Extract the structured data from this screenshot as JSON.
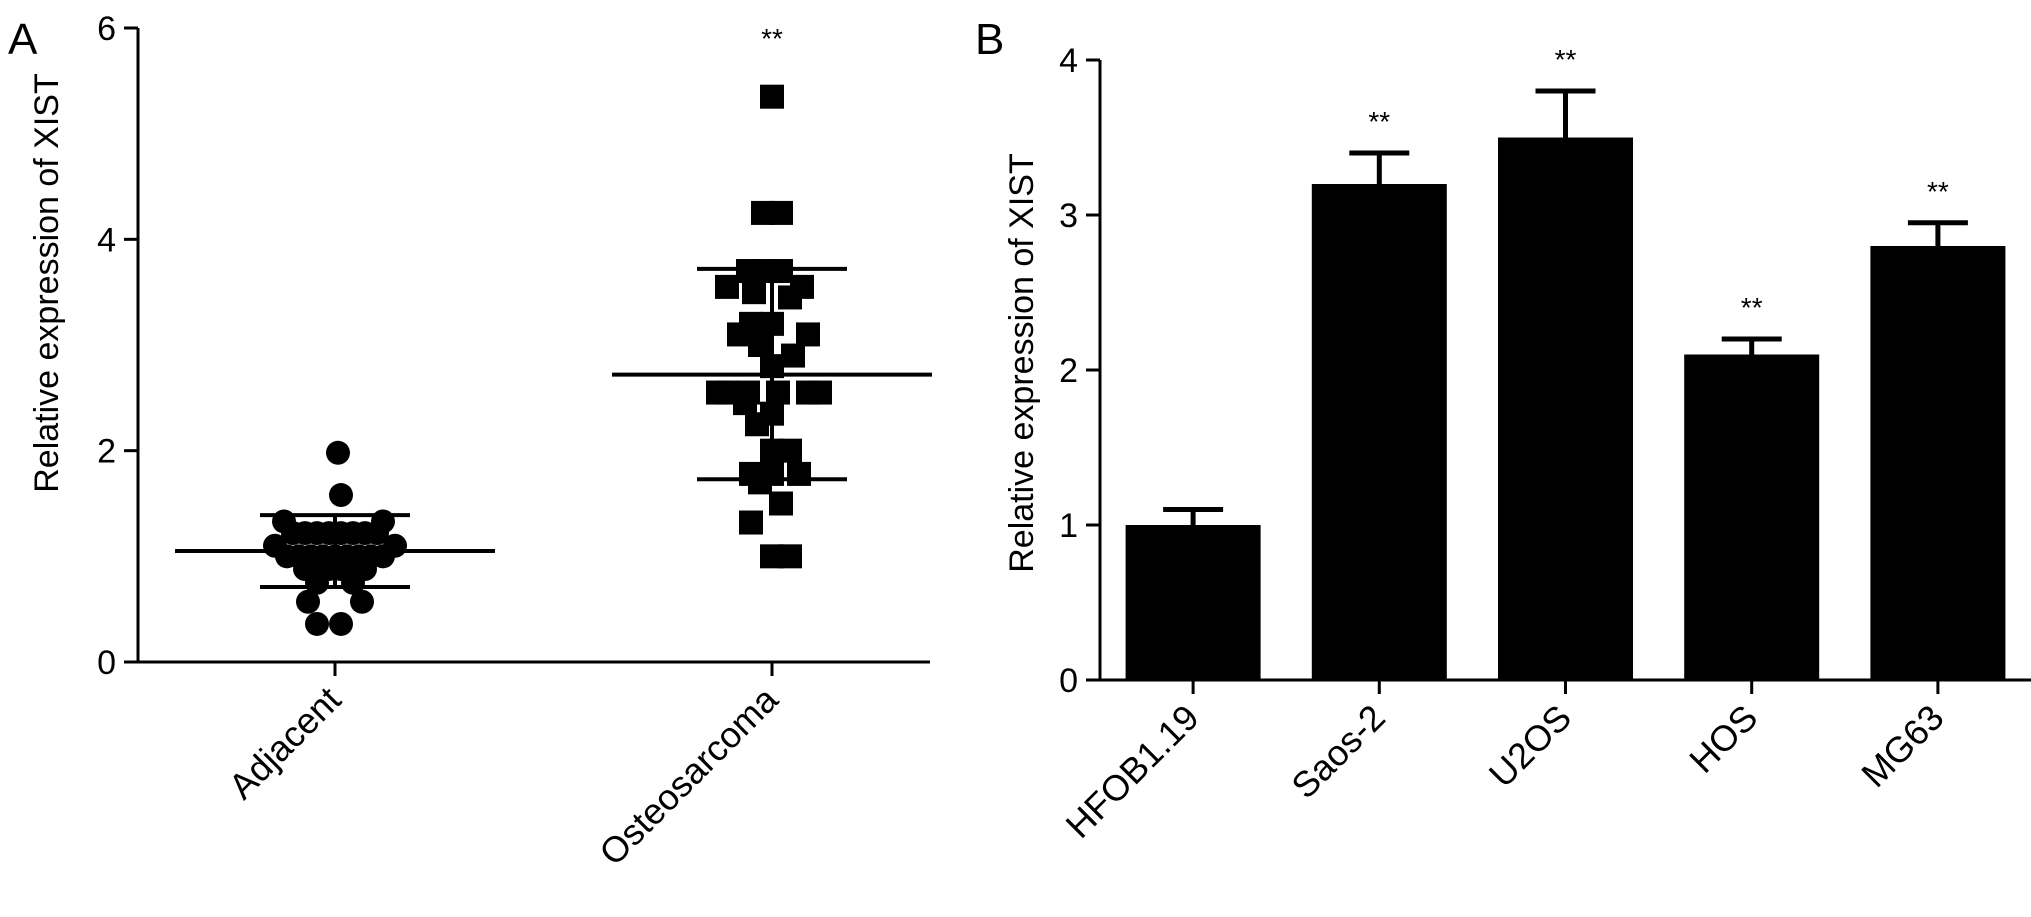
{
  "chart_data": [
    {
      "panel": "A",
      "type": "scatter",
      "ylabel": "Relative expression of XIST",
      "xlabel": "",
      "categories": [
        "Adjacent",
        "Osteosarcoma"
      ],
      "ylim": [
        0,
        6
      ],
      "yticks": [
        "0",
        "2",
        "4",
        "6"
      ],
      "significance": [
        "",
        "**"
      ],
      "marker_shapes": [
        "circle",
        "square"
      ],
      "series": [
        {
          "category": "Adjacent",
          "mean": 1.05,
          "sd": [
            0.71,
            1.39
          ],
          "points": [
            {
              "dx": -0.17,
              "y": 1.33
            },
            {
              "dx": 0.16,
              "y": 1.33
            },
            {
              "dx": -0.14,
              "y": 1.22
            },
            {
              "dx": -0.1,
              "y": 1.22
            },
            {
              "dx": -0.06,
              "y": 1.22
            },
            {
              "dx": -0.02,
              "y": 1.22
            },
            {
              "dx": 0.02,
              "y": 1.22
            },
            {
              "dx": 0.06,
              "y": 1.22
            },
            {
              "dx": 0.1,
              "y": 1.22
            },
            {
              "dx": 0.14,
              "y": 1.22
            },
            {
              "dx": -0.2,
              "y": 1.1
            },
            {
              "dx": 0.2,
              "y": 1.1
            },
            {
              "dx": -0.16,
              "y": 1.0
            },
            {
              "dx": -0.12,
              "y": 1.0
            },
            {
              "dx": -0.08,
              "y": 1.0
            },
            {
              "dx": -0.04,
              "y": 1.0
            },
            {
              "dx": 0.0,
              "y": 1.0
            },
            {
              "dx": 0.04,
              "y": 1.0
            },
            {
              "dx": 0.08,
              "y": 1.0
            },
            {
              "dx": 0.12,
              "y": 1.0
            },
            {
              "dx": 0.16,
              "y": 1.0
            },
            {
              "dx": -0.1,
              "y": 0.88
            },
            {
              "dx": -0.06,
              "y": 0.88
            },
            {
              "dx": -0.02,
              "y": 0.88
            },
            {
              "dx": 0.02,
              "y": 0.88
            },
            {
              "dx": 0.06,
              "y": 0.88
            },
            {
              "dx": 0.1,
              "y": 0.88
            },
            {
              "dx": -0.06,
              "y": 0.75
            },
            {
              "dx": 0.06,
              "y": 0.75
            },
            {
              "dx": -0.09,
              "y": 0.57
            },
            {
              "dx": 0.09,
              "y": 0.57
            },
            {
              "dx": -0.06,
              "y": 0.36
            },
            {
              "dx": 0.02,
              "y": 0.36
            },
            {
              "dx": 0.01,
              "y": 1.98
            },
            {
              "dx": 0.02,
              "y": 1.58
            }
          ]
        },
        {
          "category": "Osteosarcoma",
          "mean": 2.72,
          "sd": [
            1.73,
            3.72
          ],
          "points": [
            {
              "dx": 0.0,
              "y": 5.35
            },
            {
              "dx": -0.03,
              "y": 4.25
            },
            {
              "dx": 0.03,
              "y": 4.25
            },
            {
              "dx": -0.08,
              "y": 3.7
            },
            {
              "dx": -0.03,
              "y": 3.7
            },
            {
              "dx": 0.03,
              "y": 3.7
            },
            {
              "dx": -0.15,
              "y": 3.55
            },
            {
              "dx": 0.1,
              "y": 3.55
            },
            {
              "dx": -0.06,
              "y": 3.5
            },
            {
              "dx": 0.06,
              "y": 3.45
            },
            {
              "dx": -0.07,
              "y": 3.2
            },
            {
              "dx": 0.0,
              "y": 3.2
            },
            {
              "dx": -0.11,
              "y": 3.1
            },
            {
              "dx": 0.12,
              "y": 3.1
            },
            {
              "dx": -0.04,
              "y": 3.0
            },
            {
              "dx": 0.07,
              "y": 2.9
            },
            {
              "dx": 0.0,
              "y": 2.8
            },
            {
              "dx": -0.18,
              "y": 2.55
            },
            {
              "dx": -0.15,
              "y": 2.55
            },
            {
              "dx": -0.08,
              "y": 2.55
            },
            {
              "dx": 0.02,
              "y": 2.55
            },
            {
              "dx": 0.12,
              "y": 2.55
            },
            {
              "dx": 0.16,
              "y": 2.55
            },
            {
              "dx": -0.09,
              "y": 2.45
            },
            {
              "dx": 0.0,
              "y": 2.35
            },
            {
              "dx": -0.05,
              "y": 2.25
            },
            {
              "dx": 0.0,
              "y": 2.0
            },
            {
              "dx": 0.06,
              "y": 2.0
            },
            {
              "dx": -0.07,
              "y": 1.78
            },
            {
              "dx": 0.0,
              "y": 1.78
            },
            {
              "dx": 0.09,
              "y": 1.78
            },
            {
              "dx": -0.04,
              "y": 1.7
            },
            {
              "dx": 0.03,
              "y": 1.5
            },
            {
              "dx": -0.07,
              "y": 1.32
            },
            {
              "dx": 0.0,
              "y": 1.0
            },
            {
              "dx": 0.06,
              "y": 1.0
            }
          ]
        }
      ]
    },
    {
      "panel": "B",
      "type": "bar",
      "ylabel": "Relative expression of XIST",
      "xlabel": "",
      "categories": [
        "HFOB1.19",
        "Saos-2",
        "U2OS",
        "HOS",
        "MG63"
      ],
      "values": [
        1.0,
        3.2,
        3.5,
        2.1,
        2.8
      ],
      "errors": [
        0.1,
        0.2,
        0.3,
        0.1,
        0.15
      ],
      "significance": [
        "",
        "**",
        "**",
        "**",
        "**"
      ],
      "ylim": [
        0,
        4
      ],
      "yticks": [
        "0",
        "1",
        "2",
        "3",
        "4"
      ]
    }
  ]
}
